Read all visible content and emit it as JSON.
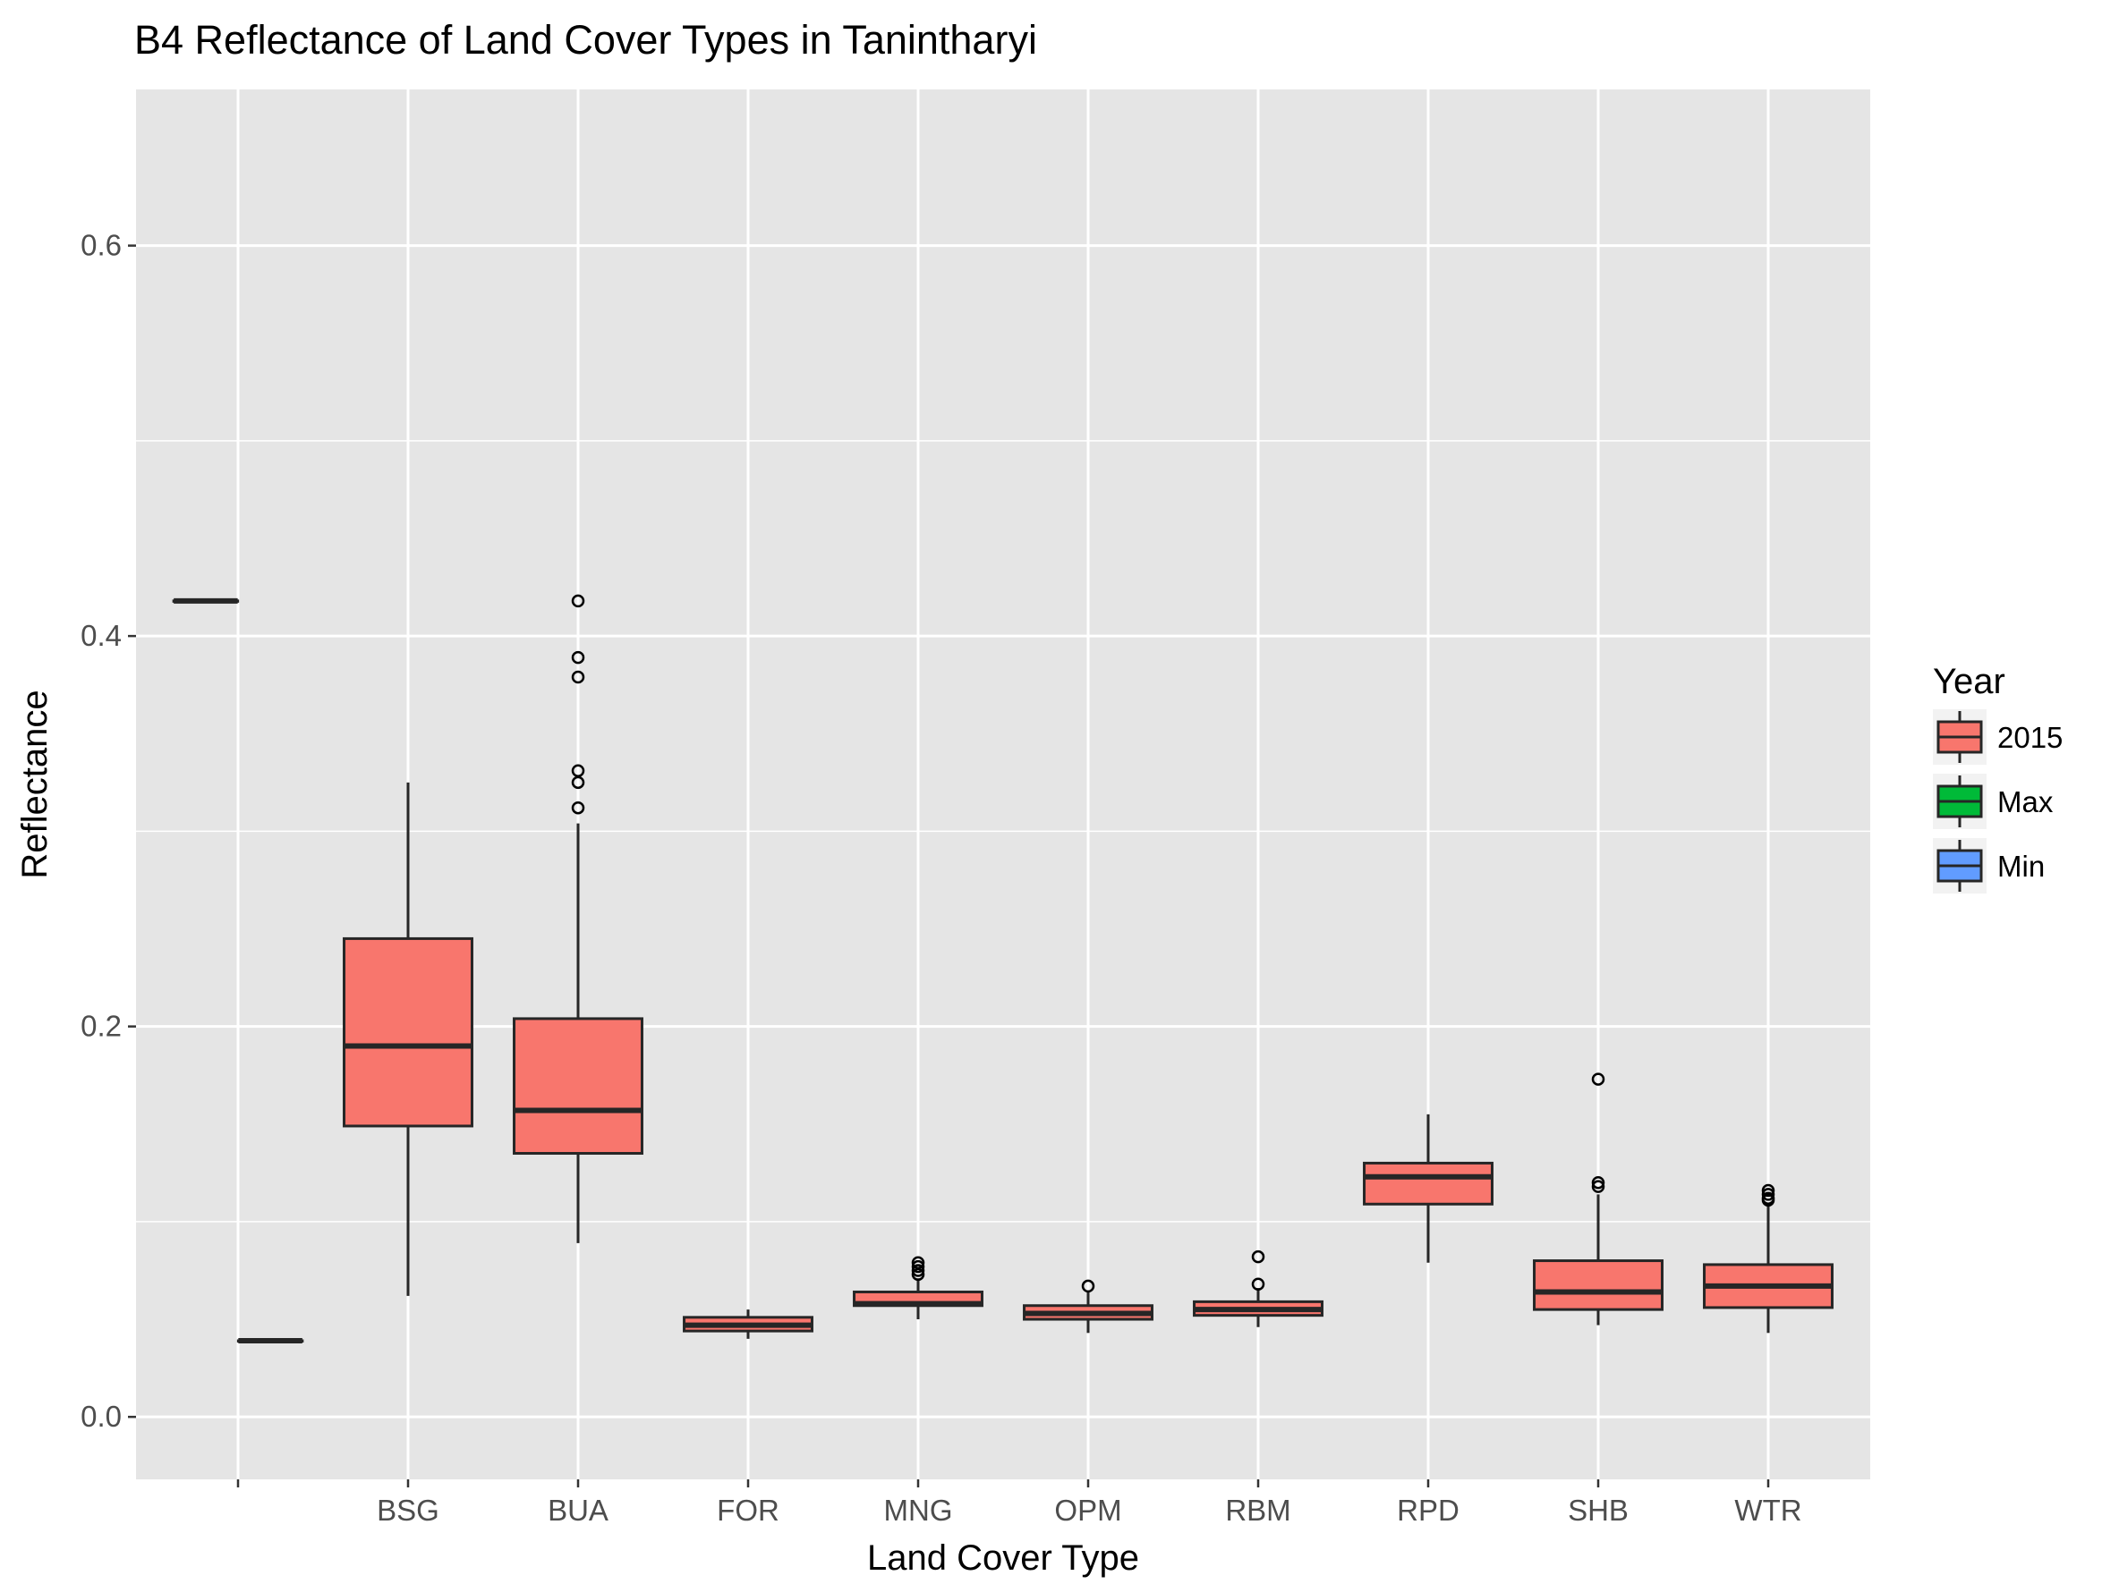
{
  "chart_data": {
    "type": "boxplot",
    "title": "B4 Reflectance of Land Cover Types in Tanintharyi",
    "xlabel": "Land Cover Type",
    "ylabel": "Reflectance",
    "ylim": [
      -0.032,
      0.68
    ],
    "yticks": [
      0.0,
      0.2,
      0.4,
      0.6
    ],
    "ytick_labels": [
      "0.0",
      "0.2",
      "0.4",
      "0.6"
    ],
    "grid": true,
    "legend": {
      "title": "Year",
      "position": "right",
      "entries": [
        {
          "label": "2015",
          "color": "#F8766D"
        },
        {
          "label": "Max",
          "color": "#00BA38"
        },
        {
          "label": "Min",
          "color": "#619CFF"
        }
      ]
    },
    "categories": [
      "",
      "BSG",
      "BUA",
      "FOR",
      "MNG",
      "OPM",
      "RBM",
      "RPD",
      "SHB",
      "WTR"
    ],
    "boxes": [
      {
        "category": "",
        "group": "Max",
        "min": 0.418,
        "q1": 0.418,
        "median": 0.418,
        "q3": 0.418,
        "max": 0.418,
        "outliers": []
      },
      {
        "category": "",
        "group": "Min",
        "min": 0.039,
        "q1": 0.039,
        "median": 0.039,
        "q3": 0.039,
        "max": 0.039,
        "outliers": []
      },
      {
        "category": "BSG",
        "group": "2015",
        "min": 0.062,
        "q1": 0.149,
        "median": 0.19,
        "q3": 0.245,
        "max": 0.325,
        "outliers": []
      },
      {
        "category": "BUA",
        "group": "2015",
        "min": 0.089,
        "q1": 0.135,
        "median": 0.157,
        "q3": 0.204,
        "max": 0.304,
        "outliers": [
          0.418,
          0.389,
          0.379,
          0.331,
          0.325,
          0.312
        ]
      },
      {
        "category": "FOR",
        "group": "2015",
        "min": 0.04,
        "q1": 0.044,
        "median": 0.047,
        "q3": 0.051,
        "max": 0.055,
        "outliers": []
      },
      {
        "category": "MNG",
        "group": "2015",
        "min": 0.05,
        "q1": 0.057,
        "median": 0.058,
        "q3": 0.064,
        "max": 0.071,
        "outliers": [
          0.079,
          0.077,
          0.075,
          0.073
        ]
      },
      {
        "category": "OPM",
        "group": "2015",
        "min": 0.043,
        "q1": 0.05,
        "median": 0.053,
        "q3": 0.057,
        "max": 0.064,
        "outliers": [
          0.067
        ]
      },
      {
        "category": "RBM",
        "group": "2015",
        "min": 0.046,
        "q1": 0.052,
        "median": 0.055,
        "q3": 0.059,
        "max": 0.066,
        "outliers": [
          0.082,
          0.068
        ]
      },
      {
        "category": "RPD",
        "group": "2015",
        "min": 0.079,
        "q1": 0.109,
        "median": 0.123,
        "q3": 0.13,
        "max": 0.155,
        "outliers": []
      },
      {
        "category": "SHB",
        "group": "2015",
        "min": 0.047,
        "q1": 0.055,
        "median": 0.064,
        "q3": 0.08,
        "max": 0.114,
        "outliers": [
          0.173,
          0.12,
          0.118
        ]
      },
      {
        "category": "WTR",
        "group": "2015",
        "min": 0.043,
        "q1": 0.056,
        "median": 0.067,
        "q3": 0.078,
        "max": 0.109,
        "outliers": [
          0.116,
          0.114,
          0.112,
          0.111
        ]
      }
    ]
  },
  "colors": {
    "panel_background": "#E5E5E5",
    "grid": "#FFFFFF",
    "box_outline": "#262626"
  }
}
